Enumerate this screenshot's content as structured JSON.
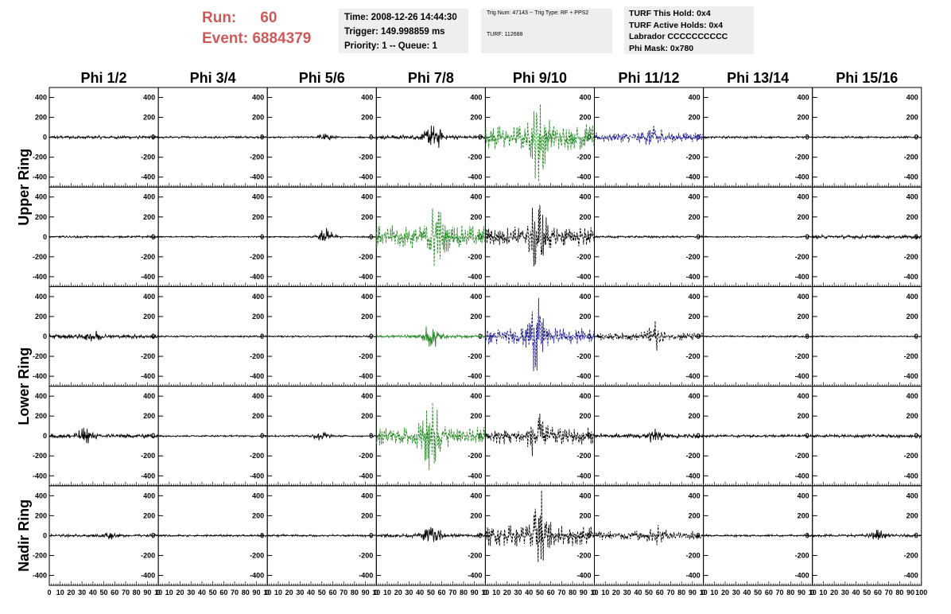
{
  "header": {
    "run_label": "Run:",
    "run_value": "60",
    "event_label": "Event:",
    "event_value": "6884379",
    "time": "Time: 2008-12-26 14:44:30",
    "trigger": "Trigger: 149.998859 ms",
    "priority": "Priority: 1 -- Queue: 1",
    "trig_num": "Trig Num: 47143 -- Trig Type: RF + PPS2",
    "turf": "TURF: 112688",
    "turf_this_hold": "TURF This Hold: 0x4",
    "turf_active_holds": "TURF Active Holds: 0x4",
    "labrador": "Labrador CCCCCCCCCC",
    "phi_mask": "Phi Mask: 0x780"
  },
  "colors": {
    "accent_text": "#cc5a5a",
    "trace_default": "#000000",
    "trace_green": "#2a8a2a",
    "trace_blue": "#1c1c8c",
    "box_bg": "#eeeeee"
  },
  "chart_data": {
    "type": "line",
    "columns": [
      "Phi 1/2",
      "Phi 3/4",
      "Phi 5/6",
      "Phi 7/8",
      "Phi 9/10",
      "Phi 11/12",
      "Phi 13/14",
      "Phi 15/16"
    ],
    "rows": [
      "Upper Ring",
      "Upper Ring",
      "Lower Ring",
      "Lower Ring",
      "Nadir Ring"
    ],
    "row_labels": [
      "Upper Ring",
      "Lower Ring",
      "Nadir Ring"
    ],
    "xlim": [
      0,
      100
    ],
    "ylim": [
      -500,
      500
    ],
    "x_ticks": [
      0,
      10,
      20,
      30,
      40,
      50,
      60,
      70,
      80,
      90,
      100
    ],
    "y_ticks": [
      -400,
      -200,
      0,
      200,
      400
    ],
    "panels": [
      [
        {
          "amp": 18,
          "burst": 0,
          "center": 50,
          "style": "k"
        },
        {
          "amp": 12,
          "burst": 0,
          "center": 50,
          "style": "k"
        },
        {
          "amp": 10,
          "burst": 40,
          "center": 53,
          "style": "k"
        },
        {
          "amp": 25,
          "burst": 170,
          "center": 52,
          "style": "k"
        },
        {
          "amp": 140,
          "burst": 420,
          "center": 50,
          "style": "g"
        },
        {
          "amp": 55,
          "burst": 120,
          "center": 55,
          "style": "b"
        },
        {
          "amp": 12,
          "burst": 0,
          "center": 50,
          "style": "k"
        },
        {
          "amp": 12,
          "burst": 0,
          "center": 50,
          "style": "k"
        }
      ],
      [
        {
          "amp": 12,
          "burst": 0,
          "center": 50,
          "style": "k"
        },
        {
          "amp": 8,
          "burst": 0,
          "center": 50,
          "style": "k"
        },
        {
          "amp": 8,
          "burst": 90,
          "center": 54,
          "style": "k"
        },
        {
          "amp": 120,
          "burst": 290,
          "center": 55,
          "style": "g"
        },
        {
          "amp": 110,
          "burst": 380,
          "center": 48,
          "style": "kd"
        },
        {
          "amp": 12,
          "burst": 0,
          "center": 50,
          "style": "k"
        },
        {
          "amp": 8,
          "burst": 0,
          "center": 50,
          "style": "k"
        },
        {
          "amp": 20,
          "burst": 0,
          "center": 50,
          "style": "k"
        }
      ],
      [
        {
          "amp": 25,
          "burst": 50,
          "center": 40,
          "style": "k"
        },
        {
          "amp": 10,
          "burst": 0,
          "center": 50,
          "style": "k"
        },
        {
          "amp": 10,
          "burst": 0,
          "center": 50,
          "style": "k"
        },
        {
          "amp": 18,
          "burst": 150,
          "center": 50,
          "style": "g"
        },
        {
          "amp": 90,
          "burst": 380,
          "center": 47,
          "style": "b"
        },
        {
          "amp": 45,
          "burst": 130,
          "center": 55,
          "style": "kd"
        },
        {
          "amp": 10,
          "burst": 0,
          "center": 50,
          "style": "k"
        },
        {
          "amp": 8,
          "burst": 0,
          "center": 50,
          "style": "k"
        }
      ],
      [
        {
          "amp": 25,
          "burst": 80,
          "center": 33,
          "style": "k"
        },
        {
          "amp": 10,
          "burst": 0,
          "center": 50,
          "style": "k"
        },
        {
          "amp": 10,
          "burst": 50,
          "center": 50,
          "style": "k"
        },
        {
          "amp": 110,
          "burst": 420,
          "center": 50,
          "style": "g"
        },
        {
          "amp": 90,
          "burst": 200,
          "center": 48,
          "style": "kd"
        },
        {
          "amp": 25,
          "burst": 60,
          "center": 55,
          "style": "k"
        },
        {
          "amp": 15,
          "burst": 0,
          "center": 50,
          "style": "k"
        },
        {
          "amp": 18,
          "burst": 0,
          "center": 50,
          "style": "k"
        }
      ],
      [
        {
          "amp": 15,
          "burst": 40,
          "center": 53,
          "style": "k"
        },
        {
          "amp": 12,
          "burst": 0,
          "center": 50,
          "style": "k"
        },
        {
          "amp": 12,
          "burst": 0,
          "center": 50,
          "style": "k"
        },
        {
          "amp": 20,
          "burst": 160,
          "center": 52,
          "style": "k"
        },
        {
          "amp": 110,
          "burst": 420,
          "center": 50,
          "style": "kd"
        },
        {
          "amp": 50,
          "burst": 100,
          "center": 55,
          "style": "kd"
        },
        {
          "amp": 12,
          "burst": 0,
          "center": 50,
          "style": "k"
        },
        {
          "amp": 15,
          "burst": 60,
          "center": 60,
          "style": "k"
        }
      ]
    ]
  }
}
